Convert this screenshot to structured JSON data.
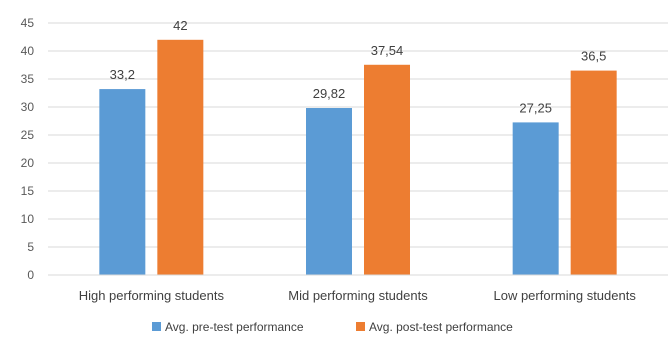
{
  "chart_data": {
    "type": "bar",
    "categories": [
      "High performing students",
      "Mid performing students",
      "Low performing students"
    ],
    "series": [
      {
        "name": "Avg. pre-test performance",
        "values": [
          33.2,
          29.82,
          27.25
        ],
        "labels": [
          "33,2",
          "29,82",
          "27,25"
        ],
        "color": "#5b9bd5"
      },
      {
        "name": "Avg. post-test performance",
        "values": [
          42,
          37.54,
          36.5
        ],
        "labels": [
          "42",
          "37,54",
          "36,5"
        ],
        "color": "#ed7d31"
      }
    ],
    "ylim": [
      0,
      45
    ],
    "yticks": [
      0,
      5,
      10,
      15,
      20,
      25,
      30,
      35,
      40,
      45
    ],
    "grid": true,
    "legend": "bottom",
    "title": "",
    "xlabel": "",
    "ylabel": ""
  }
}
